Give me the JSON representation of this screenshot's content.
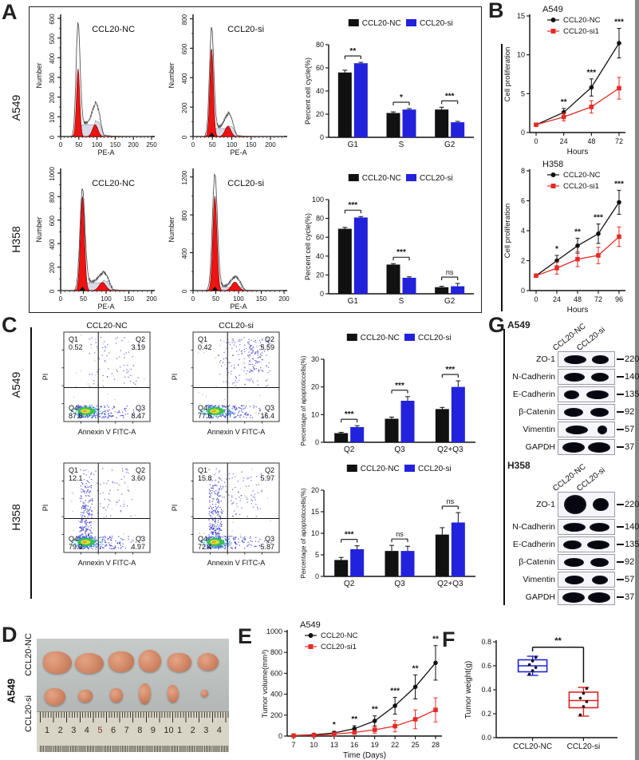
{
  "panels": {
    "A": {
      "letter": "A",
      "row_labels": [
        "A549",
        "H358"
      ]
    },
    "B": {
      "letter": "B"
    },
    "C": {
      "letter": "C",
      "row_labels": [
        "A549",
        "H358"
      ]
    },
    "D": {
      "letter": "D",
      "cell_line": "A549",
      "row_labels": [
        "CCL20-NC",
        "CCL20-si"
      ],
      "ruler_numbers": [
        "1",
        "2",
        "3",
        "4",
        "5",
        "6",
        "7",
        "8",
        "9",
        "10",
        "1",
        "2",
        "3",
        "4"
      ]
    },
    "E": {
      "letter": "E"
    },
    "F": {
      "letter": "F"
    },
    "G": {
      "letter": "G"
    }
  },
  "western": {
    "sections": [
      {
        "cell_line": "A549",
        "col_labels": [
          "CCL20-NC",
          "CCL20-si"
        ],
        "rows": [
          {
            "protein": "ZO-1",
            "mw": "220",
            "bands": [
              1.0,
              0.78
            ],
            "tall": false
          },
          {
            "protein": "N-Cadherin",
            "mw": "140",
            "bands": [
              0.95,
              0.8
            ],
            "tall": false
          },
          {
            "protein": "E-Cadherin",
            "mw": "135",
            "bands": [
              0.68,
              1.0
            ],
            "tall": false
          },
          {
            "protein": "β-Catenin",
            "mw": "92",
            "bands": [
              0.85,
              0.8
            ],
            "tall": false
          },
          {
            "protein": "Vimentin",
            "mw": "57",
            "bands": [
              1.0,
              0.45
            ],
            "tall": false
          },
          {
            "protein": "GAPDH",
            "mw": "37",
            "bands": [
              1.0,
              1.0
            ],
            "tall": false
          }
        ]
      },
      {
        "cell_line": "H358",
        "col_labels": [
          "CCL20-NC",
          "CCL20-si"
        ],
        "rows": [
          {
            "protein": "ZO-1",
            "mw": "220",
            "bands": [
              1.0,
              0.7
            ],
            "tall": true
          },
          {
            "protein": "N-Cadherin",
            "mw": "140",
            "bands": [
              1.0,
              0.9
            ],
            "tall": false
          },
          {
            "protein": "E-Cadherin",
            "mw": "135",
            "bands": [
              0.8,
              1.0
            ],
            "tall": false
          },
          {
            "protein": "β-Catenin",
            "mw": "92",
            "bands": [
              0.9,
              0.8
            ],
            "tall": false
          },
          {
            "protein": "Vimentin",
            "mw": "57",
            "bands": [
              0.85,
              0.7
            ],
            "tall": false
          },
          {
            "protein": "GAPDH",
            "mw": "37",
            "bands": [
              1.0,
              1.0
            ],
            "tall": false
          }
        ]
      }
    ]
  },
  "chart_data": [
    {
      "id": "a549_nc_hist",
      "type": "flowhist",
      "title": "CCL20-NC",
      "ylabel": "Number",
      "xlabel": "PE-A",
      "ymax": 620,
      "yticks": [
        0,
        100,
        200,
        300,
        400,
        500,
        600
      ],
      "xmax": 250,
      "xticks": [
        0,
        50,
        100,
        150,
        200,
        250
      ],
      "g1": {
        "x": 48,
        "fill": 345,
        "outline": 580
      },
      "g2": {
        "x": 95,
        "fill": 60,
        "outline": 100
      },
      "s_h": 60,
      "marker": false
    },
    {
      "id": "a549_si_hist",
      "type": "flowhist",
      "title": "CCL20-si",
      "ylabel": "Number",
      "xlabel": "PE-A",
      "ymax": 830,
      "yticks": [
        0,
        200,
        400,
        600,
        800
      ],
      "xmax": 235,
      "xticks": [
        0,
        50,
        100,
        150,
        200
      ],
      "g1": {
        "x": 48,
        "fill": 600,
        "outline": 745
      },
      "g2": {
        "x": 90,
        "fill": 70,
        "outline": 95
      },
      "s_h": 55,
      "marker": true
    },
    {
      "id": "h358_nc_hist",
      "type": "flowhist",
      "title": "CCL20-NC",
      "ylabel": "Number",
      "xlabel": "PE-A",
      "ymax": 1040,
      "yticks": [
        0,
        200,
        400,
        600,
        800,
        1000
      ],
      "xmax": 200,
      "xticks": [
        0,
        50,
        100,
        150,
        200
      ],
      "g1": {
        "x": 48,
        "fill": 800,
        "outline": 870
      },
      "g2": {
        "x": 92,
        "fill": 70,
        "outline": 78
      },
      "s_h": 65,
      "marker": true
    },
    {
      "id": "h358_si_hist",
      "type": "flowhist",
      "title": "CCL20-si",
      "ylabel": "Number",
      "xlabel": "PE-A",
      "ymax": 1290,
      "yticks": [
        0,
        400,
        800,
        1200
      ],
      "xmax": 200,
      "xticks": [
        0,
        50,
        100,
        150,
        200
      ],
      "g1": {
        "x": 48,
        "fill": 1000,
        "outline": 1230
      },
      "g2": {
        "x": 92,
        "fill": 90,
        "outline": 110
      },
      "s_h": 38,
      "marker": true
    },
    {
      "id": "a549_cellcycle_bar",
      "type": "bar",
      "ylabel": "Percent cell cycle(%)",
      "ylim": [
        0,
        80
      ],
      "yticks": [
        0,
        20,
        40,
        60,
        80
      ],
      "categories": [
        "G1",
        "S",
        "G2"
      ],
      "series": [
        {
          "name": "CCL20-NC",
          "color": "#111111",
          "values": [
            56,
            21,
            24
          ],
          "errors": [
            2,
            1,
            2
          ]
        },
        {
          "name": "CCL20-si",
          "color": "#2222dd",
          "values": [
            64,
            24,
            13
          ],
          "errors": [
            0.8,
            0.8,
            0.8
          ]
        }
      ],
      "sig": [
        "**",
        "*",
        "***"
      ]
    },
    {
      "id": "h358_cellcycle_bar",
      "type": "bar",
      "ylabel": "Percent cell cycle(%)",
      "ylim": [
        0,
        100
      ],
      "yticks": [
        0,
        20,
        40,
        60,
        80,
        100
      ],
      "categories": [
        "G1",
        "S",
        "G2"
      ],
      "series": [
        {
          "name": "CCL20-NC",
          "color": "#111111",
          "values": [
            69,
            31,
            7
          ],
          "errors": [
            1.5,
            1,
            1
          ]
        },
        {
          "name": "CCL20-si",
          "color": "#2222dd",
          "values": [
            81,
            17,
            8
          ],
          "errors": [
            1,
            1,
            3
          ]
        }
      ],
      "sig": [
        "***",
        "***",
        "ns"
      ]
    },
    {
      "id": "b_a549_line",
      "type": "line",
      "title": "A549",
      "ylabel": "Cell proliferation",
      "xlabel": "Hours",
      "ylim": [
        0,
        15
      ],
      "yticks": [
        0,
        5,
        10,
        15
      ],
      "x": [
        0,
        24,
        48,
        72
      ],
      "series": [
        {
          "name": "CCL20-NC",
          "color": "#111111",
          "marker": "circle",
          "values": [
            1,
            2.6,
            5.8,
            11.5
          ],
          "errors": [
            0.2,
            0.5,
            1.1,
            1.9
          ]
        },
        {
          "name": "CCL20-si1",
          "color": "#e42b26",
          "marker": "square",
          "values": [
            1,
            2.0,
            3.3,
            5.7
          ],
          "errors": [
            0.2,
            0.5,
            0.8,
            1.4
          ]
        }
      ],
      "sig": [
        "",
        "**",
        "***",
        "***"
      ]
    },
    {
      "id": "b_h358_line",
      "type": "line",
      "title": "H358",
      "ylabel": "Cell proliferation",
      "xlabel": "Hours",
      "ylim": [
        0,
        8
      ],
      "yticks": [
        0,
        2,
        4,
        6,
        8
      ],
      "x": [
        0,
        24,
        48,
        72,
        96
      ],
      "series": [
        {
          "name": "CCL20-NC",
          "color": "#111111",
          "marker": "circle",
          "values": [
            1,
            2.0,
            3.0,
            3.8,
            5.9
          ],
          "errors": [
            0.1,
            0.35,
            0.5,
            0.65,
            0.8
          ]
        },
        {
          "name": "CCL20-si1",
          "color": "#e42b26",
          "marker": "square",
          "values": [
            1,
            1.5,
            2.1,
            2.35,
            3.6
          ],
          "errors": [
            0.1,
            0.4,
            0.5,
            0.55,
            0.65
          ]
        }
      ],
      "sig": [
        "",
        "*",
        "**",
        "***",
        "***"
      ]
    },
    {
      "id": "c_a549_nc_scatter",
      "type": "quadscatter",
      "title": "CCL20-NC",
      "xlabel": "Annexin V FITC-A",
      "ylabel": "PI",
      "q": {
        "Q1": "0.52",
        "Q2": "3.19",
        "Q3": "8.47",
        "Q4": "87.8"
      },
      "pattern": {
        "leftBand": false,
        "upper": 0.5,
        "right": 0.4,
        "seed": 7
      }
    },
    {
      "id": "c_a549_si_scatter",
      "type": "quadscatter",
      "title": "CCL20-si",
      "xlabel": "Annexin V FITC-A",
      "ylabel": "PI",
      "q": {
        "Q1": "0.42",
        "Q2": "5.59",
        "Q3": "16.4",
        "Q4": "77.6"
      },
      "pattern": {
        "leftBand": false,
        "upper": 0.85,
        "right": 0.85,
        "seed": 11
      }
    },
    {
      "id": "c_h358_nc_scatter",
      "type": "quadscatter",
      "title": "",
      "xlabel": "Annexin V FITC-A",
      "ylabel": "PI",
      "q": {
        "Q1": "12.1",
        "Q2": "3.60",
        "Q3": "4.97",
        "Q4": "79.3"
      },
      "pattern": {
        "leftBand": true,
        "upper": 0.5,
        "right": 0.45,
        "seed": 23
      }
    },
    {
      "id": "c_h358_si_scatter",
      "type": "quadscatter",
      "title": "",
      "xlabel": "Annexin V FITC-A",
      "ylabel": "PI",
      "q": {
        "Q1": "15.8",
        "Q2": "5.97",
        "Q3": "5.87",
        "Q4": "72.4"
      },
      "pattern": {
        "leftBand": true,
        "upper": 0.7,
        "right": 0.7,
        "seed": 31
      }
    },
    {
      "id": "c_a549_apoptosis_bar",
      "type": "bar",
      "ylabel": "Percentage of apoptoticcells(%)",
      "ylim": [
        0,
        30
      ],
      "yticks": [
        0,
        10,
        20,
        30
      ],
      "categories": [
        "Q2",
        "Q3",
        "Q2+Q3"
      ],
      "series": [
        {
          "name": "CCL20-NC",
          "color": "#111111",
          "values": [
            3.3,
            8.5,
            12.0
          ],
          "errors": [
            0.3,
            0.6,
            0.6
          ]
        },
        {
          "name": "CCL20-si",
          "color": "#2222dd",
          "values": [
            5.5,
            15.0,
            20.0
          ],
          "errors": [
            0.5,
            1.5,
            2.2
          ]
        }
      ],
      "sig": [
        "***",
        "***",
        "***"
      ]
    },
    {
      "id": "c_h358_apoptosis_bar",
      "type": "bar",
      "ylabel": "Percentage of apoptoticcells(%)",
      "ylim": [
        0,
        20
      ],
      "yticks": [
        0,
        5,
        10,
        15,
        20
      ],
      "categories": [
        "Q2",
        "Q3",
        "Q2+Q3"
      ],
      "series": [
        {
          "name": "CCL20-NC",
          "color": "#111111",
          "values": [
            3.8,
            5.9,
            9.7
          ],
          "errors": [
            0.6,
            1.3,
            1.6
          ]
        },
        {
          "name": "CCL20-si",
          "color": "#2222dd",
          "values": [
            6.3,
            5.9,
            12.5
          ],
          "errors": [
            0.8,
            1.1,
            2.3
          ]
        }
      ],
      "sig": [
        "***",
        "ns",
        "ns"
      ]
    },
    {
      "id": "e_tumor_volume_line",
      "type": "line",
      "title": "A549",
      "ylabel": "Tumor volume(mm³)",
      "xlabel": "Time (Days)",
      "ylim": [
        0,
        1000
      ],
      "yticks": [
        0,
        200,
        400,
        600,
        800,
        1000
      ],
      "x": [
        7,
        10,
        13,
        16,
        19,
        22,
        25,
        28
      ],
      "series": [
        {
          "name": "CCL20-NC",
          "color": "#111111",
          "marker": "circle",
          "values": [
            5,
            12,
            30,
            70,
            145,
            290,
            470,
            700
          ],
          "errors": [
            3,
            6,
            15,
            28,
            48,
            80,
            115,
            165
          ]
        },
        {
          "name": "CCL20-si1",
          "color": "#e42b26",
          "marker": "square",
          "values": [
            4,
            8,
            18,
            35,
            60,
            95,
            160,
            250
          ],
          "errors": [
            2,
            5,
            10,
            18,
            32,
            55,
            90,
            115
          ]
        }
      ],
      "sig": [
        "",
        "",
        "*",
        "**",
        "**",
        "***",
        "**",
        "**"
      ]
    },
    {
      "id": "f_tumor_weight_box",
      "type": "box",
      "ylabel": "Tumor weight(g)",
      "ylim": [
        0,
        0.8
      ],
      "yticks": [
        "0.0",
        "0.2",
        "0.4",
        "0.6",
        "0.8"
      ],
      "sig": "**",
      "groups": [
        {
          "label": "CCL20-NC",
          "color": "#2222dd",
          "min": 0.52,
          "q1": 0.55,
          "med": 0.6,
          "q3": 0.65,
          "max": 0.68,
          "points": [
            0.53,
            0.56,
            0.585,
            0.61,
            0.64,
            0.67
          ]
        },
        {
          "label": "CCL20-si",
          "color": "#dd2222",
          "min": 0.18,
          "q1": 0.25,
          "med": 0.31,
          "q3": 0.38,
          "max": 0.42,
          "points": [
            0.19,
            0.26,
            0.3,
            0.33,
            0.37,
            0.41
          ]
        }
      ]
    }
  ]
}
